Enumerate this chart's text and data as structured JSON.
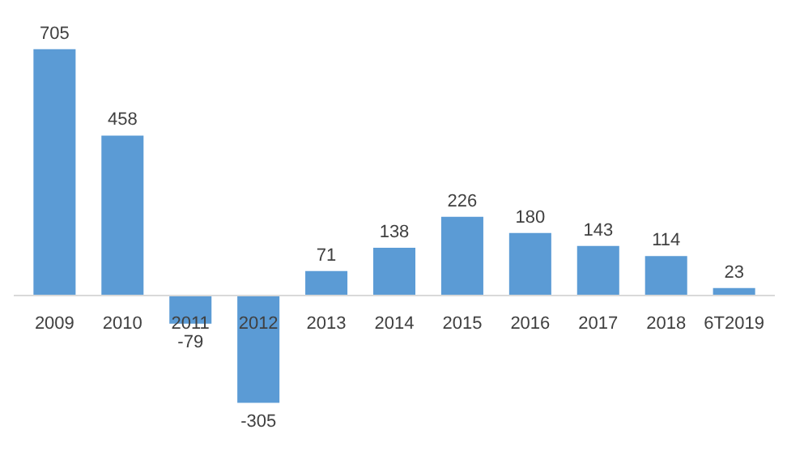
{
  "chart_data": {
    "type": "bar",
    "categories": [
      "2009",
      "2010",
      "2011",
      "2012",
      "2013",
      "2014",
      "2015",
      "2016",
      "2017",
      "2018",
      "6T2019"
    ],
    "values": [
      705,
      458,
      -79,
      -305,
      71,
      138,
      226,
      180,
      143,
      114,
      23
    ],
    "color": "#5b9bd5",
    "data_labels": true,
    "grid": false
  }
}
